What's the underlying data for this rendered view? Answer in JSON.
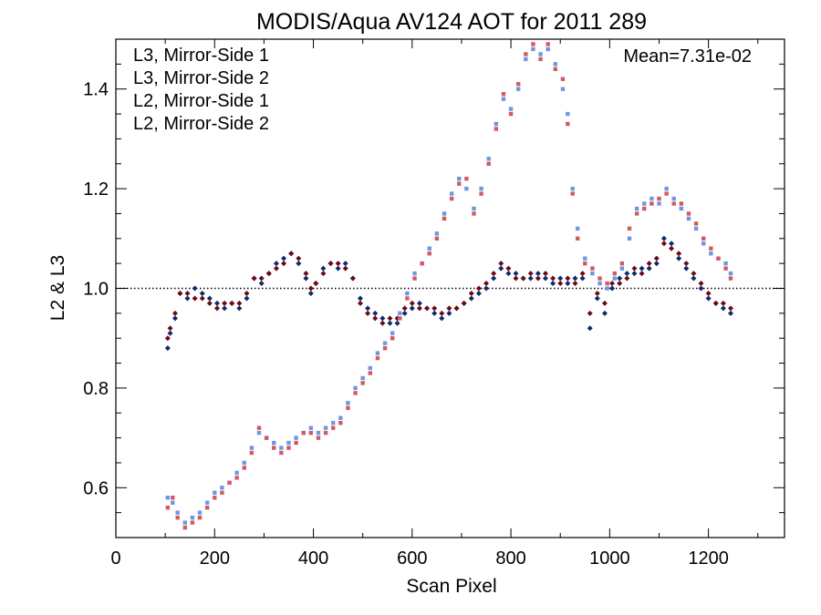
{
  "chart_data": {
    "type": "scatter",
    "title": "MODIS/Aqua AV124 AOT for 2011 289",
    "xlabel": "Scan Pixel",
    "ylabel": "L2 & L3",
    "xlim": [
      0,
      1354
    ],
    "ylim": [
      0.5,
      1.5
    ],
    "x_ticks": [
      "0",
      "200",
      "400",
      "600",
      "800",
      "1000",
      "1200"
    ],
    "y_ticks": [
      "0.6",
      "0.8",
      "1.0",
      "1.2",
      "1.4"
    ],
    "reference_line": 1.0,
    "annotation": "Mean=7.31e-02",
    "legend_position": "top-left",
    "series": [
      {
        "name": "L3, Mirror-Side 1",
        "color": "#0d2a6b",
        "marker": "diamond",
        "points": [
          [
            105,
            0.88
          ],
          [
            110,
            0.91
          ],
          [
            120,
            0.94
          ],
          [
            130,
            0.99
          ],
          [
            145,
            0.98
          ],
          [
            160,
            1.0
          ],
          [
            175,
            0.99
          ],
          [
            190,
            0.98
          ],
          [
            205,
            0.97
          ],
          [
            220,
            0.96
          ],
          [
            235,
            0.97
          ],
          [
            250,
            0.96
          ],
          [
            265,
            0.98
          ],
          [
            280,
            1.02
          ],
          [
            295,
            1.01
          ],
          [
            310,
            1.03
          ],
          [
            325,
            1.05
          ],
          [
            340,
            1.06
          ],
          [
            355,
            1.07
          ],
          [
            370,
            1.05
          ],
          [
            385,
            1.02
          ],
          [
            395,
            0.99
          ],
          [
            405,
            1.01
          ],
          [
            420,
            1.04
          ],
          [
            435,
            1.05
          ],
          [
            450,
            1.04
          ],
          [
            465,
            1.05
          ],
          [
            480,
            1.02
          ],
          [
            495,
            0.98
          ],
          [
            510,
            0.96
          ],
          [
            525,
            0.95
          ],
          [
            540,
            0.94
          ],
          [
            555,
            0.93
          ],
          [
            570,
            0.93
          ],
          [
            585,
            0.95
          ],
          [
            600,
            0.96
          ],
          [
            615,
            0.97
          ],
          [
            630,
            0.96
          ],
          [
            645,
            0.95
          ],
          [
            660,
            0.94
          ],
          [
            675,
            0.95
          ],
          [
            690,
            0.96
          ],
          [
            705,
            0.97
          ],
          [
            720,
            0.98
          ],
          [
            735,
            0.99
          ],
          [
            750,
            1.0
          ],
          [
            765,
            1.02
          ],
          [
            780,
            1.04
          ],
          [
            795,
            1.03
          ],
          [
            810,
            1.03
          ],
          [
            825,
            1.02
          ],
          [
            840,
            1.02
          ],
          [
            855,
            1.03
          ],
          [
            870,
            1.02
          ],
          [
            885,
            1.01
          ],
          [
            900,
            1.02
          ],
          [
            915,
            1.01
          ],
          [
            930,
            1.02
          ],
          [
            945,
            1.02
          ],
          [
            960,
            0.92
          ],
          [
            975,
            0.98
          ],
          [
            990,
            0.95
          ],
          [
            1005,
            1.0
          ],
          [
            1020,
            1.02
          ],
          [
            1035,
            1.03
          ],
          [
            1050,
            1.03
          ],
          [
            1065,
            1.04
          ],
          [
            1080,
            1.04
          ],
          [
            1095,
            1.05
          ],
          [
            1110,
            1.1
          ],
          [
            1125,
            1.09
          ],
          [
            1140,
            1.06
          ],
          [
            1155,
            1.04
          ],
          [
            1170,
            1.02
          ],
          [
            1185,
            1.0
          ],
          [
            1200,
            0.98
          ],
          [
            1215,
            0.97
          ],
          [
            1230,
            0.96
          ],
          [
            1245,
            0.95
          ]
        ]
      },
      {
        "name": "L3, Mirror-Side 2",
        "color": "#6b0a16",
        "marker": "diamond",
        "points": [
          [
            105,
            0.9
          ],
          [
            110,
            0.92
          ],
          [
            120,
            0.95
          ],
          [
            130,
            0.99
          ],
          [
            145,
            0.99
          ],
          [
            160,
            0.98
          ],
          [
            175,
            0.98
          ],
          [
            190,
            0.97
          ],
          [
            205,
            0.96
          ],
          [
            220,
            0.97
          ],
          [
            235,
            0.97
          ],
          [
            250,
            0.97
          ],
          [
            265,
            0.99
          ],
          [
            280,
            1.02
          ],
          [
            295,
            1.02
          ],
          [
            310,
            1.03
          ],
          [
            325,
            1.04
          ],
          [
            340,
            1.05
          ],
          [
            355,
            1.07
          ],
          [
            370,
            1.06
          ],
          [
            385,
            1.03
          ],
          [
            395,
            1.0
          ],
          [
            405,
            1.01
          ],
          [
            420,
            1.03
          ],
          [
            435,
            1.05
          ],
          [
            450,
            1.05
          ],
          [
            465,
            1.04
          ],
          [
            480,
            1.02
          ],
          [
            495,
            0.97
          ],
          [
            510,
            0.95
          ],
          [
            525,
            0.94
          ],
          [
            540,
            0.93
          ],
          [
            555,
            0.94
          ],
          [
            570,
            0.94
          ],
          [
            585,
            0.96
          ],
          [
            600,
            0.97
          ],
          [
            615,
            0.96
          ],
          [
            630,
            0.96
          ],
          [
            645,
            0.96
          ],
          [
            660,
            0.95
          ],
          [
            675,
            0.96
          ],
          [
            690,
            0.96
          ],
          [
            705,
            0.97
          ],
          [
            720,
            0.99
          ],
          [
            735,
            1.0
          ],
          [
            750,
            1.01
          ],
          [
            765,
            1.03
          ],
          [
            780,
            1.05
          ],
          [
            795,
            1.04
          ],
          [
            810,
            1.02
          ],
          [
            825,
            1.02
          ],
          [
            840,
            1.03
          ],
          [
            855,
            1.02
          ],
          [
            870,
            1.03
          ],
          [
            885,
            1.02
          ],
          [
            900,
            1.01
          ],
          [
            915,
            1.02
          ],
          [
            930,
            1.01
          ],
          [
            945,
            1.03
          ],
          [
            960,
            0.95
          ],
          [
            975,
            0.99
          ],
          [
            990,
            0.97
          ],
          [
            1005,
            1.01
          ],
          [
            1020,
            1.01
          ],
          [
            1035,
            1.02
          ],
          [
            1050,
            1.04
          ],
          [
            1065,
            1.03
          ],
          [
            1080,
            1.05
          ],
          [
            1095,
            1.06
          ],
          [
            1110,
            1.09
          ],
          [
            1125,
            1.08
          ],
          [
            1140,
            1.07
          ],
          [
            1155,
            1.05
          ],
          [
            1170,
            1.03
          ],
          [
            1185,
            1.01
          ],
          [
            1200,
            0.99
          ],
          [
            1215,
            0.97
          ],
          [
            1230,
            0.97
          ],
          [
            1245,
            0.96
          ]
        ]
      },
      {
        "name": "L2, Mirror-Side 1",
        "color": "#6f96e6",
        "marker": "square",
        "points": [
          [
            105,
            0.58
          ],
          [
            115,
            0.57
          ],
          [
            125,
            0.55
          ],
          [
            140,
            0.53
          ],
          [
            155,
            0.54
          ],
          [
            170,
            0.55
          ],
          [
            185,
            0.57
          ],
          [
            200,
            0.59
          ],
          [
            215,
            0.6
          ],
          [
            230,
            0.61
          ],
          [
            245,
            0.63
          ],
          [
            260,
            0.65
          ],
          [
            275,
            0.68
          ],
          [
            290,
            0.71
          ],
          [
            305,
            0.7
          ],
          [
            320,
            0.69
          ],
          [
            335,
            0.68
          ],
          [
            350,
            0.69
          ],
          [
            365,
            0.7
          ],
          [
            380,
            0.71
          ],
          [
            395,
            0.72
          ],
          [
            410,
            0.71
          ],
          [
            425,
            0.72
          ],
          [
            440,
            0.73
          ],
          [
            455,
            0.74
          ],
          [
            470,
            0.77
          ],
          [
            485,
            0.8
          ],
          [
            500,
            0.82
          ],
          [
            515,
            0.84
          ],
          [
            530,
            0.87
          ],
          [
            545,
            0.89
          ],
          [
            560,
            0.91
          ],
          [
            575,
            0.95
          ],
          [
            590,
            0.99
          ],
          [
            605,
            1.03
          ],
          [
            620,
            1.05
          ],
          [
            635,
            1.08
          ],
          [
            650,
            1.11
          ],
          [
            665,
            1.15
          ],
          [
            680,
            1.19
          ],
          [
            695,
            1.22
          ],
          [
            710,
            1.2
          ],
          [
            725,
            1.16
          ],
          [
            740,
            1.2
          ],
          [
            755,
            1.26
          ],
          [
            770,
            1.33
          ],
          [
            785,
            1.38
          ],
          [
            800,
            1.36
          ],
          [
            815,
            1.4
          ],
          [
            830,
            1.46
          ],
          [
            845,
            1.48
          ],
          [
            860,
            1.47
          ],
          [
            875,
            1.48
          ],
          [
            890,
            1.45
          ],
          [
            905,
            1.4
          ],
          [
            915,
            1.35
          ],
          [
            925,
            1.2
          ],
          [
            935,
            1.12
          ],
          [
            950,
            1.06
          ],
          [
            965,
            1.03
          ],
          [
            980,
            1.01
          ],
          [
            995,
            1.0
          ],
          [
            1010,
            1.02
          ],
          [
            1025,
            1.04
          ],
          [
            1040,
            1.1
          ],
          [
            1055,
            1.16
          ],
          [
            1070,
            1.17
          ],
          [
            1085,
            1.18
          ],
          [
            1100,
            1.17
          ],
          [
            1115,
            1.2
          ],
          [
            1130,
            1.18
          ],
          [
            1145,
            1.16
          ],
          [
            1160,
            1.14
          ],
          [
            1175,
            1.12
          ],
          [
            1190,
            1.09
          ],
          [
            1205,
            1.07
          ],
          [
            1220,
            1.06
          ],
          [
            1235,
            1.05
          ],
          [
            1245,
            1.03
          ]
        ]
      },
      {
        "name": "L2, Mirror-Side 2",
        "color": "#d05a60",
        "marker": "square",
        "points": [
          [
            105,
            0.56
          ],
          [
            115,
            0.58
          ],
          [
            125,
            0.54
          ],
          [
            140,
            0.52
          ],
          [
            155,
            0.53
          ],
          [
            170,
            0.54
          ],
          [
            185,
            0.56
          ],
          [
            200,
            0.58
          ],
          [
            215,
            0.59
          ],
          [
            230,
            0.61
          ],
          [
            245,
            0.62
          ],
          [
            260,
            0.64
          ],
          [
            275,
            0.67
          ],
          [
            290,
            0.72
          ],
          [
            305,
            0.7
          ],
          [
            320,
            0.68
          ],
          [
            335,
            0.67
          ],
          [
            350,
            0.68
          ],
          [
            365,
            0.69
          ],
          [
            380,
            0.71
          ],
          [
            395,
            0.71
          ],
          [
            410,
            0.7
          ],
          [
            425,
            0.71
          ],
          [
            440,
            0.72
          ],
          [
            455,
            0.73
          ],
          [
            470,
            0.76
          ],
          [
            485,
            0.79
          ],
          [
            500,
            0.81
          ],
          [
            515,
            0.83
          ],
          [
            530,
            0.86
          ],
          [
            545,
            0.88
          ],
          [
            560,
            0.9
          ],
          [
            575,
            0.94
          ],
          [
            590,
            0.98
          ],
          [
            605,
            1.02
          ],
          [
            620,
            1.05
          ],
          [
            635,
            1.07
          ],
          [
            650,
            1.1
          ],
          [
            665,
            1.14
          ],
          [
            680,
            1.18
          ],
          [
            695,
            1.21
          ],
          [
            710,
            1.22
          ],
          [
            725,
            1.15
          ],
          [
            740,
            1.19
          ],
          [
            755,
            1.25
          ],
          [
            770,
            1.32
          ],
          [
            785,
            1.39
          ],
          [
            800,
            1.35
          ],
          [
            815,
            1.41
          ],
          [
            830,
            1.47
          ],
          [
            845,
            1.49
          ],
          [
            860,
            1.46
          ],
          [
            875,
            1.49
          ],
          [
            890,
            1.44
          ],
          [
            905,
            1.42
          ],
          [
            915,
            1.33
          ],
          [
            925,
            1.19
          ],
          [
            935,
            1.1
          ],
          [
            950,
            1.05
          ],
          [
            965,
            1.04
          ],
          [
            980,
            1.02
          ],
          [
            995,
            1.01
          ],
          [
            1010,
            1.03
          ],
          [
            1025,
            1.05
          ],
          [
            1040,
            1.12
          ],
          [
            1055,
            1.15
          ],
          [
            1070,
            1.16
          ],
          [
            1085,
            1.17
          ],
          [
            1100,
            1.18
          ],
          [
            1115,
            1.19
          ],
          [
            1130,
            1.17
          ],
          [
            1145,
            1.17
          ],
          [
            1160,
            1.15
          ],
          [
            1175,
            1.13
          ],
          [
            1190,
            1.1
          ],
          [
            1205,
            1.08
          ],
          [
            1220,
            1.06
          ],
          [
            1235,
            1.04
          ],
          [
            1245,
            1.02
          ]
        ]
      }
    ]
  }
}
